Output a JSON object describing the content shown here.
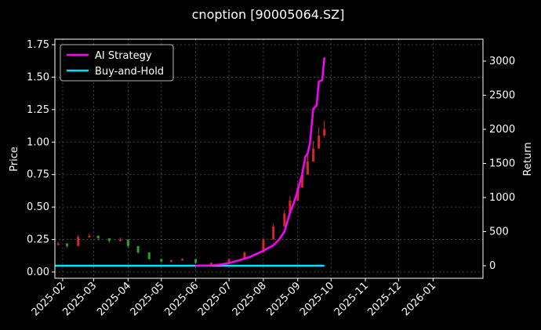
{
  "chart_data": {
    "type": "line",
    "title": "cnoption [90005064.SZ]",
    "ylabel_left": "Price",
    "ylabel_right": "Return",
    "ylim_left": [
      0,
      1.75
    ],
    "ylim_right": [
      0,
      3000
    ],
    "xlim": [
      "2025-01-25",
      "2026-02-15"
    ],
    "x_ticks": [
      "2025-02",
      "2025-03",
      "2025-04",
      "2025-05",
      "2025-06",
      "2025-07",
      "2025-08",
      "2025-09",
      "2025-10",
      "2025-11",
      "2025-12",
      "2026-01"
    ],
    "y_ticks_left": [
      "0.00",
      "0.25",
      "0.50",
      "0.75",
      "1.00",
      "1.25",
      "1.50",
      "1.75"
    ],
    "y_ticks_right": [
      "0",
      "500",
      "1000",
      "1500",
      "2000",
      "2500",
      "3000"
    ],
    "grid": true,
    "legend_position": "top-left",
    "colors": {
      "background": "#000000",
      "ai_strategy": "#ff00ff",
      "buy_and_hold": "#00e5ff",
      "candle_up": "#d62728",
      "candle_down": "#2ca02c",
      "grid": "#555555"
    },
    "series": [
      {
        "name": "AI Strategy",
        "axis": "right",
        "points": [
          [
            "2025-06-01",
            0
          ],
          [
            "2025-06-15",
            5
          ],
          [
            "2025-06-25",
            20
          ],
          [
            "2025-07-01",
            40
          ],
          [
            "2025-07-10",
            80
          ],
          [
            "2025-07-20",
            130
          ],
          [
            "2025-08-01",
            220
          ],
          [
            "2025-08-10",
            300
          ],
          [
            "2025-08-15",
            380
          ],
          [
            "2025-08-20",
            500
          ],
          [
            "2025-08-25",
            780
          ],
          [
            "2025-08-28",
            900
          ],
          [
            "2025-09-01",
            1100
          ],
          [
            "2025-09-05",
            1350
          ],
          [
            "2025-09-08",
            1600
          ],
          [
            "2025-09-10",
            1650
          ],
          [
            "2025-09-12",
            1800
          ],
          [
            "2025-09-15",
            2300
          ],
          [
            "2025-09-18",
            2350
          ],
          [
            "2025-09-20",
            2700
          ],
          [
            "2025-09-23",
            2720
          ],
          [
            "2025-09-25",
            3050
          ]
        ]
      },
      {
        "name": "Buy-and-Hold",
        "axis": "right",
        "points": [
          [
            "2025-01-25",
            0
          ],
          [
            "2025-09-25",
            0
          ]
        ]
      }
    ],
    "candles": {
      "axis": "left",
      "points": [
        [
          "2025-01-28",
          0.22
        ],
        [
          "2025-02-05",
          0.2
        ],
        [
          "2025-02-15",
          0.27
        ],
        [
          "2025-02-25",
          0.28
        ],
        [
          "2025-03-05",
          0.26
        ],
        [
          "2025-03-15",
          0.24
        ],
        [
          "2025-03-25",
          0.25
        ],
        [
          "2025-04-01",
          0.2
        ],
        [
          "2025-04-10",
          0.15
        ],
        [
          "2025-04-20",
          0.1
        ],
        [
          "2025-05-01",
          0.08
        ],
        [
          "2025-05-10",
          0.09
        ],
        [
          "2025-05-20",
          0.1
        ],
        [
          "2025-06-01",
          0.07
        ],
        [
          "2025-06-15",
          0.07
        ],
        [
          "2025-07-01",
          0.1
        ],
        [
          "2025-07-15",
          0.15
        ],
        [
          "2025-08-01",
          0.25
        ],
        [
          "2025-08-10",
          0.35
        ],
        [
          "2025-08-20",
          0.45
        ],
        [
          "2025-08-25",
          0.55
        ],
        [
          "2025-09-01",
          0.65
        ],
        [
          "2025-09-05",
          0.75
        ],
        [
          "2025-09-10",
          0.85
        ],
        [
          "2025-09-15",
          0.95
        ],
        [
          "2025-09-20",
          1.05
        ],
        [
          "2025-09-25",
          1.1
        ]
      ]
    }
  }
}
